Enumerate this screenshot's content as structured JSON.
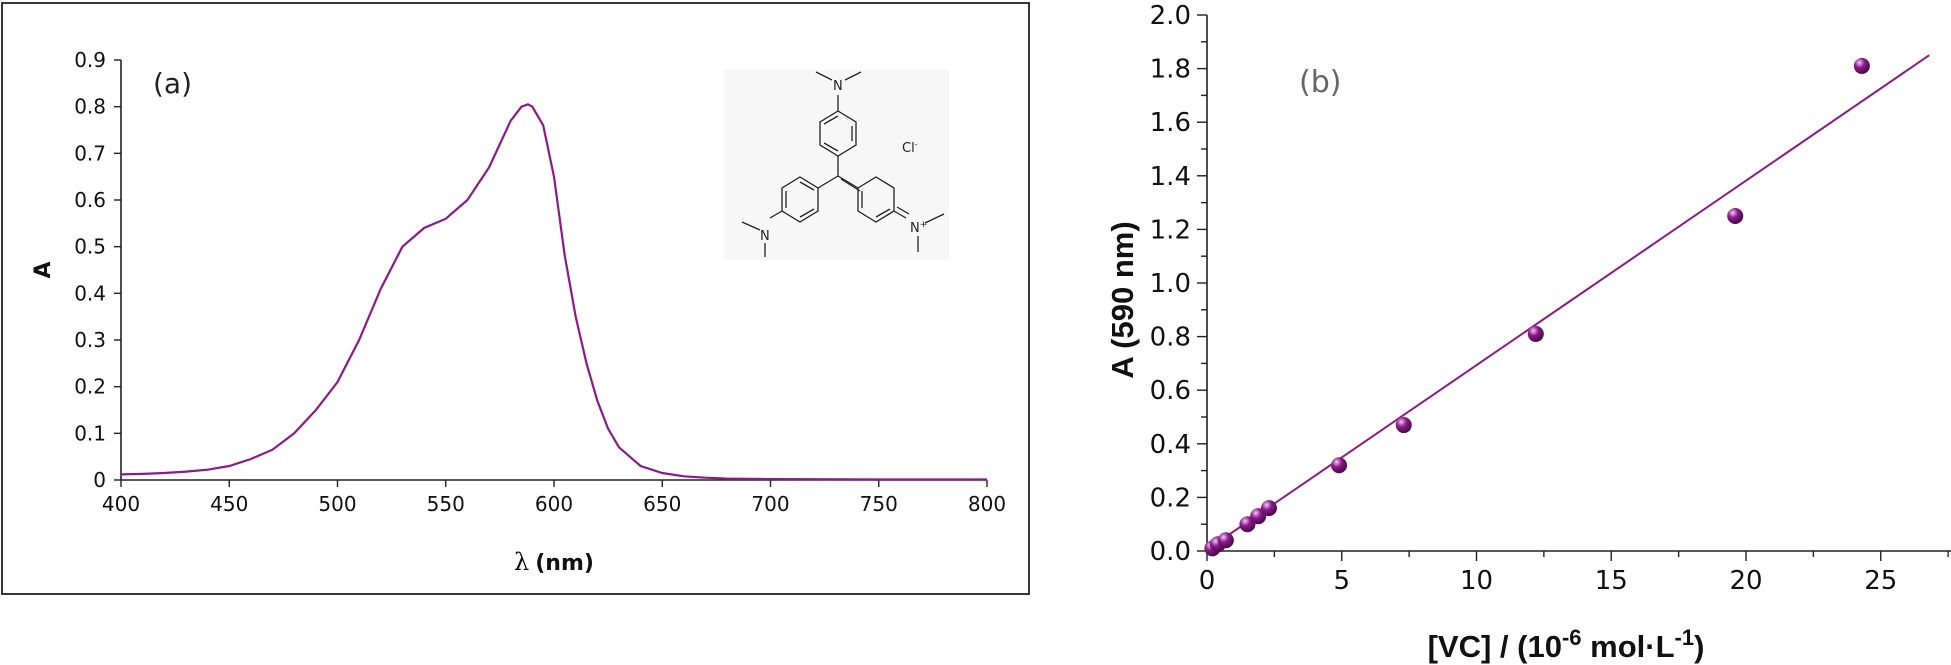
{
  "colors": {
    "series": "#8b1a8b",
    "axis": "#222222",
    "frame": "#222222"
  },
  "chart_data": [
    {
      "panel": "(a)",
      "type": "line",
      "xlabel_prefix": "λ",
      "xlabel_unit": "(nm)",
      "ylabel": "A",
      "xlim": [
        400,
        800
      ],
      "ylim": [
        0,
        0.9
      ],
      "x_ticks": [
        "400",
        "450",
        "500",
        "550",
        "600",
        "650",
        "700",
        "750",
        "800"
      ],
      "y_ticks": [
        "0",
        "0.1",
        "0.2",
        "0.3",
        "0.4",
        "0.5",
        "0.6",
        "0.7",
        "0.8",
        "0.9"
      ],
      "grid": false,
      "inset": "molecular structure",
      "inset_labels": {
        "n_top": "N",
        "n_left": "N",
        "n_right": "N",
        "n_right_charge": "+",
        "counterion": "Cl",
        "counterion_charge": "-"
      },
      "series": [
        {
          "x": [
            400,
            410,
            420,
            430,
            440,
            450,
            460,
            470,
            480,
            490,
            500,
            510,
            520,
            530,
            540,
            550,
            560,
            570,
            575,
            580,
            585,
            588,
            590,
            595,
            600,
            605,
            610,
            615,
            620,
            625,
            630,
            640,
            650,
            660,
            670,
            680,
            700,
            750,
            800
          ],
          "y": [
            0.012,
            0.013,
            0.015,
            0.018,
            0.022,
            0.03,
            0.045,
            0.065,
            0.1,
            0.15,
            0.21,
            0.3,
            0.41,
            0.5,
            0.54,
            0.56,
            0.6,
            0.67,
            0.72,
            0.77,
            0.8,
            0.805,
            0.8,
            0.76,
            0.65,
            0.48,
            0.35,
            0.25,
            0.17,
            0.11,
            0.07,
            0.03,
            0.015,
            0.008,
            0.005,
            0.003,
            0.002,
            0.001,
            0.001
          ]
        }
      ]
    },
    {
      "panel": "(b)",
      "type": "scatter",
      "xlabel": "[VC] / (10",
      "xlabel_exp": "-6",
      "xlabel_mid": " mol·L",
      "xlabel_exp2": "-1",
      "xlabel_end": ")",
      "ylabel": "A (590 nm)",
      "xlim": [
        0,
        27
      ],
      "ylim": [
        0,
        2.0
      ],
      "x_ticks": [
        "0",
        "5",
        "10",
        "15",
        "20",
        "25"
      ],
      "y_ticks": [
        "0.0",
        "0.2",
        "0.4",
        "0.6",
        "0.8",
        "1.0",
        "1.2",
        "1.4",
        "1.6",
        "1.8",
        "2.0"
      ],
      "grid": false,
      "points": {
        "x": [
          0.2,
          0.4,
          0.7,
          1.5,
          1.9,
          2.3,
          4.9,
          7.3,
          12.2,
          19.6,
          24.3
        ],
        "y": [
          0.01,
          0.025,
          0.04,
          0.1,
          0.13,
          0.16,
          0.32,
          0.47,
          0.81,
          1.25,
          1.81
        ]
      },
      "fit_line": {
        "x": [
          0,
          26.8
        ],
        "y": [
          0.005,
          1.85
        ]
      }
    }
  ]
}
